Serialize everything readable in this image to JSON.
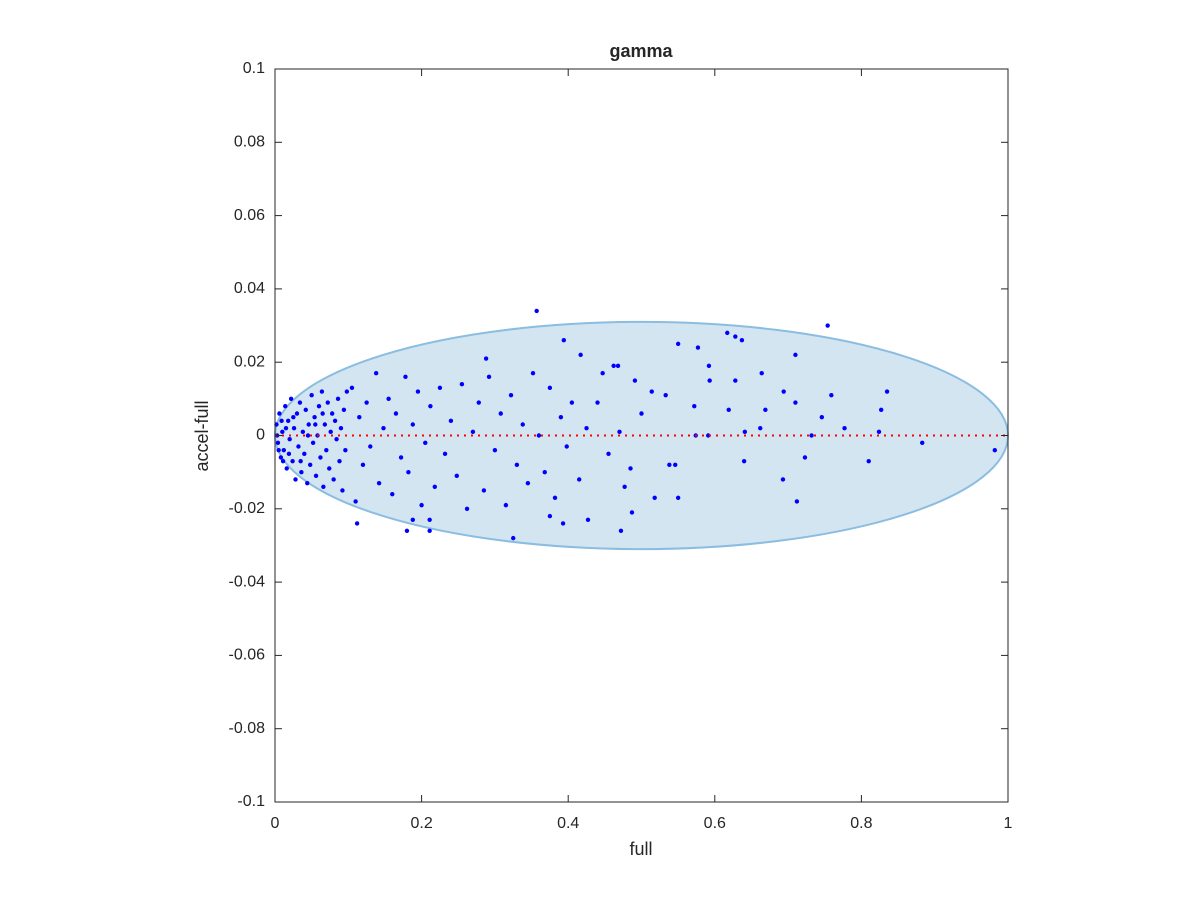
{
  "chart_data": {
    "type": "scatter",
    "title": "gamma",
    "xlabel": "full",
    "ylabel": "accel-full",
    "xlim": [
      0,
      1
    ],
    "ylim": [
      -0.1,
      0.1
    ],
    "xticks": [
      0,
      0.2,
      0.4,
      0.6,
      0.8,
      1
    ],
    "yticks": [
      -0.1,
      -0.08,
      -0.06,
      -0.04,
      -0.02,
      0,
      0.02,
      0.04,
      0.06,
      0.08,
      0.1
    ],
    "ellipse": {
      "center": [
        0.5,
        0
      ],
      "radii": [
        0.5,
        0.031
      ],
      "color": "#d4e5f2",
      "edge_color": "#8bbde0"
    },
    "reference_line": {
      "y": 0,
      "color": "#ff0000"
    },
    "x": [
      0.357,
      0.754,
      0.617,
      0.628,
      0.637,
      0.288,
      0.394,
      0.417,
      0.462,
      0.468,
      0.55,
      0.577,
      0.71,
      0.664,
      0.592,
      0.593,
      0.628,
      0.694,
      0.759,
      0.835,
      0.827,
      0.71,
      0.669,
      0.619,
      0.572,
      0.533,
      0.514,
      0.491,
      0.447,
      0.746,
      0.777,
      0.824,
      0.883,
      0.982,
      0.81,
      0.723,
      0.732,
      0.64,
      0.693,
      0.712,
      0.518,
      0.487,
      0.55,
      0.538,
      0.546,
      0.472,
      0.477,
      0.427,
      0.393,
      0.375,
      0.325,
      0.211,
      0.18,
      0.112,
      0.188,
      0.211,
      0.574,
      0.591,
      0.641,
      0.662,
      0.002,
      0.004,
      0.006,
      0.008,
      0.01,
      0.012,
      0.014,
      0.016,
      0.018,
      0.02,
      0.022,
      0.024,
      0.026,
      0.028,
      0.03,
      0.032,
      0.034,
      0.036,
      0.038,
      0.04,
      0.042,
      0.044,
      0.046,
      0.048,
      0.05,
      0.052,
      0.054,
      0.056,
      0.058,
      0.06,
      0.062,
      0.064,
      0.066,
      0.068,
      0.07,
      0.072,
      0.074,
      0.076,
      0.078,
      0.08,
      0.082,
      0.084,
      0.086,
      0.088,
      0.09,
      0.092,
      0.094,
      0.096,
      0.098,
      0.005,
      0.015,
      0.025,
      0.035,
      0.045,
      0.055,
      0.065,
      0.003,
      0.009,
      0.011,
      0.019,
      0.105,
      0.11,
      0.115,
      0.12,
      0.125,
      0.13,
      0.138,
      0.142,
      0.148,
      0.155,
      0.16,
      0.165,
      0.172,
      0.178,
      0.182,
      0.188,
      0.195,
      0.2,
      0.205,
      0.212,
      0.218,
      0.225,
      0.232,
      0.24,
      0.248,
      0.255,
      0.262,
      0.27,
      0.278,
      0.285,
      0.292,
      0.3,
      0.308,
      0.315,
      0.322,
      0.33,
      0.338,
      0.345,
      0.352,
      0.36,
      0.368,
      0.375,
      0.382,
      0.39,
      0.398,
      0.405,
      0.415,
      0.425,
      0.44,
      0.455,
      0.47,
      0.485,
      0.5
    ],
    "series": [
      {
        "color": "#0000ff",
        "values": [
          0.034,
          0.03,
          0.028,
          0.027,
          0.026,
          0.021,
          0.026,
          0.022,
          0.019,
          0.019,
          0.025,
          0.024,
          0.022,
          0.017,
          0.019,
          0.015,
          0.015,
          0.012,
          0.011,
          0.012,
          0.007,
          0.009,
          0.007,
          0.007,
          0.008,
          0.011,
          0.012,
          0.015,
          0.017,
          0.005,
          0.002,
          0.001,
          -0.002,
          -0.004,
          -0.007,
          -0.006,
          0,
          -0.007,
          -0.012,
          -0.018,
          -0.017,
          -0.021,
          -0.017,
          -0.008,
          -0.008,
          -0.026,
          -0.014,
          -0.023,
          -0.024,
          -0.022,
          -0.028,
          -0.026,
          -0.026,
          -0.024,
          -0.023,
          -0.023,
          0,
          0,
          0.001,
          0.002,
          0.003,
          -0.002,
          0.006,
          -0.006,
          0.001,
          -0.004,
          0.008,
          -0.009,
          0.004,
          -0.001,
          0.01,
          -0.007,
          0.002,
          -0.012,
          0.006,
          -0.003,
          0.009,
          -0.01,
          0.001,
          -0.005,
          0.007,
          -0.013,
          0.003,
          -0.008,
          0.011,
          -0.002,
          0.005,
          -0.011,
          0,
          0.008,
          -0.006,
          0.012,
          -0.014,
          0.003,
          -0.004,
          0.009,
          -0.009,
          0.001,
          0.006,
          -0.012,
          0.004,
          -0.001,
          0.01,
          -0.007,
          0.002,
          -0.015,
          0.007,
          -0.004,
          0.012,
          -0.004,
          0.002,
          0.005,
          -0.007,
          0,
          0.003,
          0.006,
          0,
          0.004,
          -0.007,
          -0.005,
          0.013,
          -0.018,
          0.005,
          -0.008,
          0.009,
          -0.003,
          0.017,
          -0.013,
          0.002,
          0.01,
          -0.016,
          0.006,
          -0.006,
          0.016,
          -0.01,
          0.003,
          0.012,
          -0.019,
          -0.002,
          0.008,
          -0.014,
          0.013,
          -0.005,
          0.004,
          -0.011,
          0.014,
          -0.02,
          0.001,
          0.009,
          -0.015,
          0.016,
          -0.004,
          0.006,
          -0.019,
          0.011,
          -0.008,
          0.003,
          -0.013,
          0.017,
          0,
          -0.01,
          0.013,
          -0.017,
          0.005,
          -0.003,
          0.009,
          -0.012,
          0.002,
          0.009,
          -0.005,
          0.001,
          -0.009,
          0.006
        ]
      }
    ]
  }
}
